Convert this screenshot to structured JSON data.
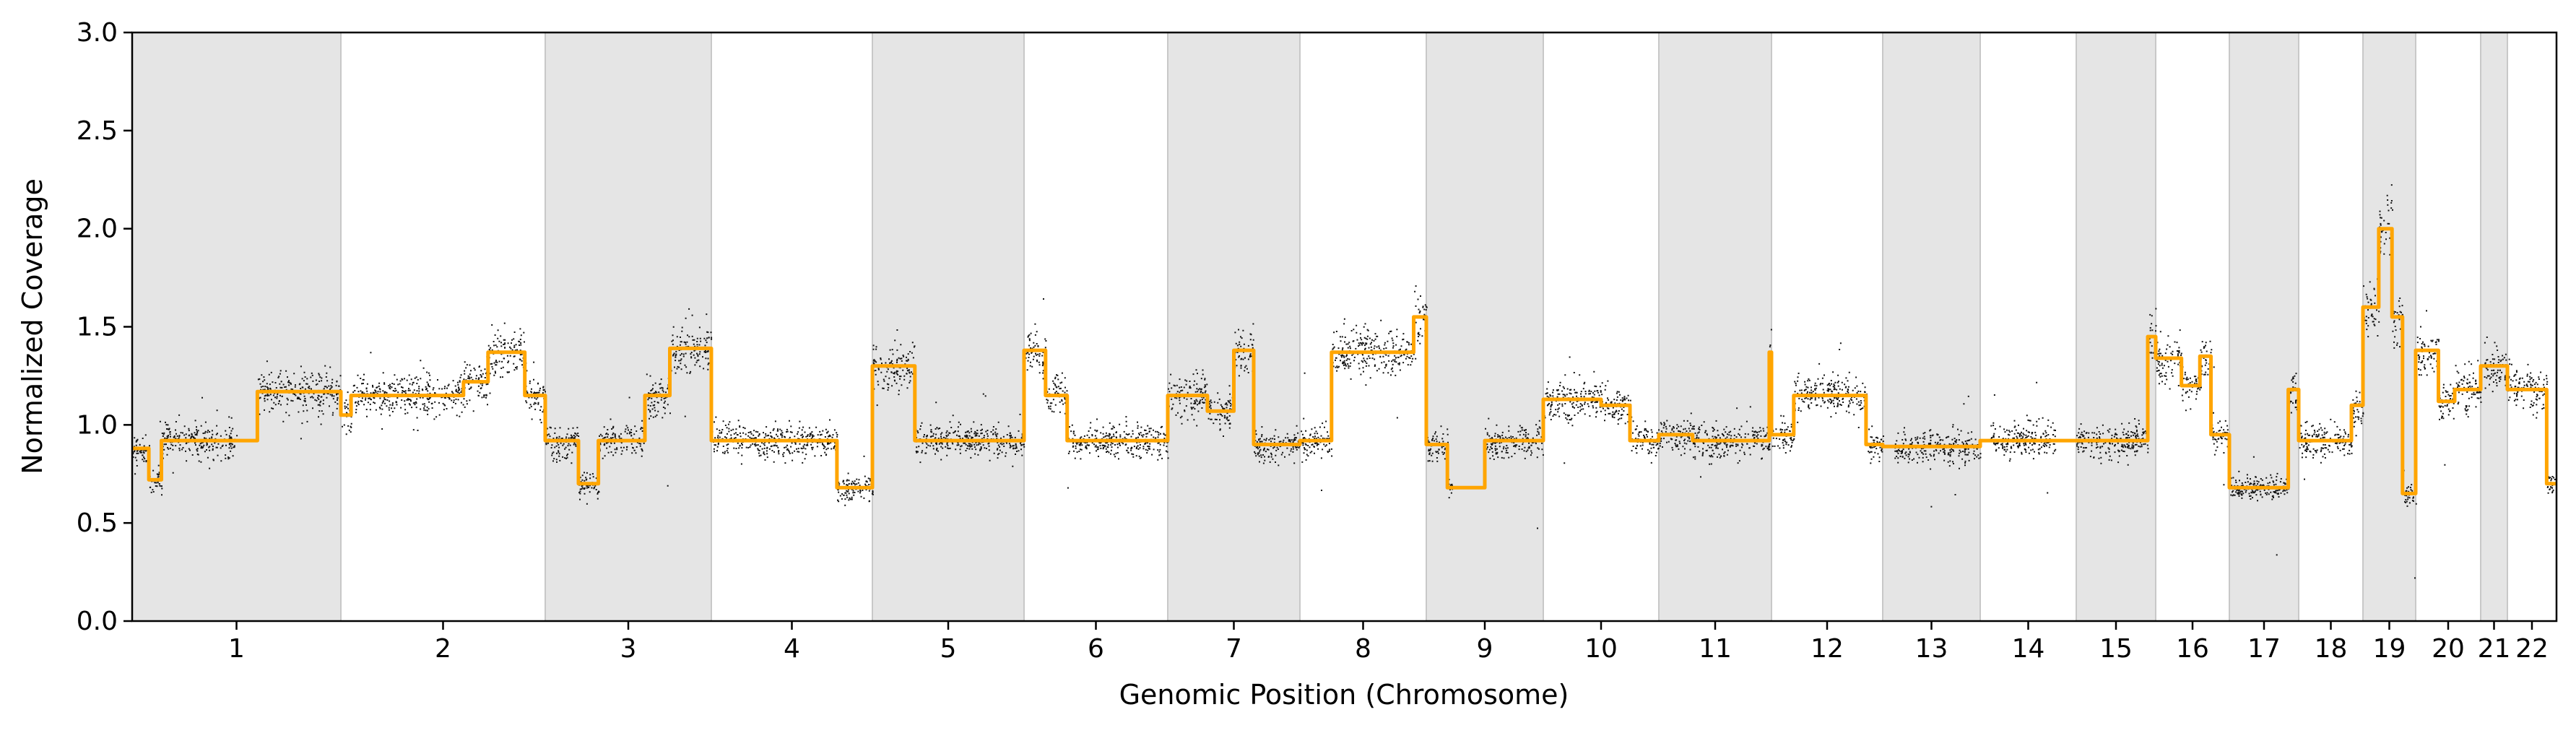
{
  "chart_data": {
    "type": "scatter",
    "xlabel": "Genomic Position (Chromosome)",
    "ylabel": "Normalized Coverage",
    "ylim": [
      0.0,
      3.0
    ],
    "yticks": [
      "0.0",
      "0.5",
      "1.0",
      "1.5",
      "2.0",
      "2.5",
      "3.0"
    ],
    "grid": false,
    "legend": "none",
    "colors": {
      "points": "#111111",
      "segments": "#ffa500",
      "band": "#e5e5e5",
      "band_edge": "#c8c8c8"
    },
    "chromosomes": [
      {
        "label": "1",
        "shaded": true,
        "segments": [
          [
            0.0,
            0.08,
            0.88
          ],
          [
            0.08,
            0.14,
            0.72
          ],
          [
            0.14,
            0.5,
            0.92
          ],
          [
            0.5,
            0.6,
            0.92
          ],
          [
            0.6,
            1.0,
            1.17
          ]
        ],
        "gaps": [
          [
            0.5,
            0.6
          ]
        ]
      },
      {
        "label": "2",
        "shaded": false,
        "segments": [
          [
            0.0,
            0.05,
            1.05
          ],
          [
            0.05,
            0.6,
            1.15
          ],
          [
            0.6,
            0.72,
            1.22
          ],
          [
            0.72,
            0.9,
            1.37
          ],
          [
            0.9,
            1.0,
            1.15
          ]
        ]
      },
      {
        "label": "3",
        "shaded": true,
        "segments": [
          [
            0.0,
            0.2,
            0.92
          ],
          [
            0.2,
            0.32,
            0.7
          ],
          [
            0.32,
            0.6,
            0.92
          ],
          [
            0.6,
            0.75,
            1.15
          ],
          [
            0.75,
            1.0,
            1.39
          ]
        ]
      },
      {
        "label": "4",
        "shaded": false,
        "segments": [
          [
            0.0,
            0.78,
            0.92
          ],
          [
            0.78,
            1.0,
            0.68
          ]
        ]
      },
      {
        "label": "5",
        "shaded": true,
        "segments": [
          [
            0.0,
            0.28,
            1.3
          ],
          [
            0.28,
            1.0,
            0.92
          ]
        ]
      },
      {
        "label": "6",
        "shaded": false,
        "segments": [
          [
            0.0,
            0.15,
            1.38
          ],
          [
            0.15,
            0.3,
            1.15
          ],
          [
            0.3,
            1.0,
            0.92
          ]
        ]
      },
      {
        "label": "7",
        "shaded": true,
        "segments": [
          [
            0.0,
            0.3,
            1.15
          ],
          [
            0.3,
            0.5,
            1.07
          ],
          [
            0.5,
            0.65,
            1.38
          ],
          [
            0.65,
            1.0,
            0.9
          ]
        ]
      },
      {
        "label": "8",
        "shaded": false,
        "segments": [
          [
            0.0,
            0.25,
            0.92
          ],
          [
            0.25,
            0.9,
            1.37
          ],
          [
            0.9,
            1.0,
            1.55
          ]
        ]
      },
      {
        "label": "9",
        "shaded": true,
        "segments": [
          [
            0.0,
            0.18,
            0.9
          ],
          [
            0.18,
            0.5,
            0.68
          ],
          [
            0.5,
            1.0,
            0.92
          ]
        ],
        "gaps": [
          [
            0.22,
            0.5
          ]
        ]
      },
      {
        "label": "10",
        "shaded": false,
        "segments": [
          [
            0.0,
            0.5,
            1.13
          ],
          [
            0.5,
            0.75,
            1.1
          ],
          [
            0.75,
            1.0,
            0.92
          ]
        ]
      },
      {
        "label": "11",
        "shaded": true,
        "segments": [
          [
            0.0,
            0.3,
            0.95
          ],
          [
            0.3,
            0.98,
            0.92
          ],
          [
            0.98,
            1.0,
            1.37
          ]
        ]
      },
      {
        "label": "12",
        "shaded": false,
        "segments": [
          [
            0.0,
            0.2,
            0.95
          ],
          [
            0.2,
            0.85,
            1.15
          ],
          [
            0.85,
            1.0,
            0.9
          ]
        ]
      },
      {
        "label": "13",
        "shaded": true,
        "segments": [
          [
            0.0,
            1.0,
            0.89
          ]
        ],
        "gaps": [
          [
            0.0,
            0.12
          ]
        ]
      },
      {
        "label": "14",
        "shaded": false,
        "segments": [
          [
            0.0,
            1.0,
            0.92
          ]
        ],
        "gaps": [
          [
            0.0,
            0.1
          ],
          [
            0.78,
            1.0
          ]
        ]
      },
      {
        "label": "15",
        "shaded": true,
        "segments": [
          [
            0.0,
            0.9,
            0.92
          ],
          [
            0.9,
            1.0,
            1.45
          ]
        ]
      },
      {
        "label": "16",
        "shaded": false,
        "segments": [
          [
            0.0,
            0.35,
            1.34
          ],
          [
            0.35,
            0.6,
            1.2
          ],
          [
            0.6,
            0.75,
            1.35
          ],
          [
            0.75,
            1.0,
            0.95
          ]
        ]
      },
      {
        "label": "17",
        "shaded": true,
        "segments": [
          [
            0.0,
            0.85,
            0.68
          ],
          [
            0.85,
            1.0,
            1.18
          ]
        ]
      },
      {
        "label": "18",
        "shaded": false,
        "segments": [
          [
            0.0,
            0.82,
            0.92
          ],
          [
            0.82,
            1.0,
            1.1
          ]
        ]
      },
      {
        "label": "19",
        "shaded": true,
        "segments": [
          [
            0.0,
            0.3,
            1.6
          ],
          [
            0.3,
            0.55,
            2.0
          ],
          [
            0.55,
            0.75,
            1.55
          ],
          [
            0.75,
            1.0,
            0.65
          ]
        ]
      },
      {
        "label": "20",
        "shaded": false,
        "segments": [
          [
            0.0,
            0.35,
            1.38
          ],
          [
            0.35,
            0.6,
            1.12
          ],
          [
            0.6,
            1.0,
            1.18
          ]
        ]
      },
      {
        "label": "21",
        "shaded": true,
        "segments": [
          [
            0.0,
            1.0,
            1.3
          ]
        ],
        "gaps": [
          [
            0.0,
            0.12
          ]
        ]
      },
      {
        "label": "22",
        "shaded": false,
        "segments": [
          [
            0.0,
            0.8,
            1.18
          ],
          [
            0.8,
            1.0,
            0.7
          ]
        ]
      }
    ]
  }
}
